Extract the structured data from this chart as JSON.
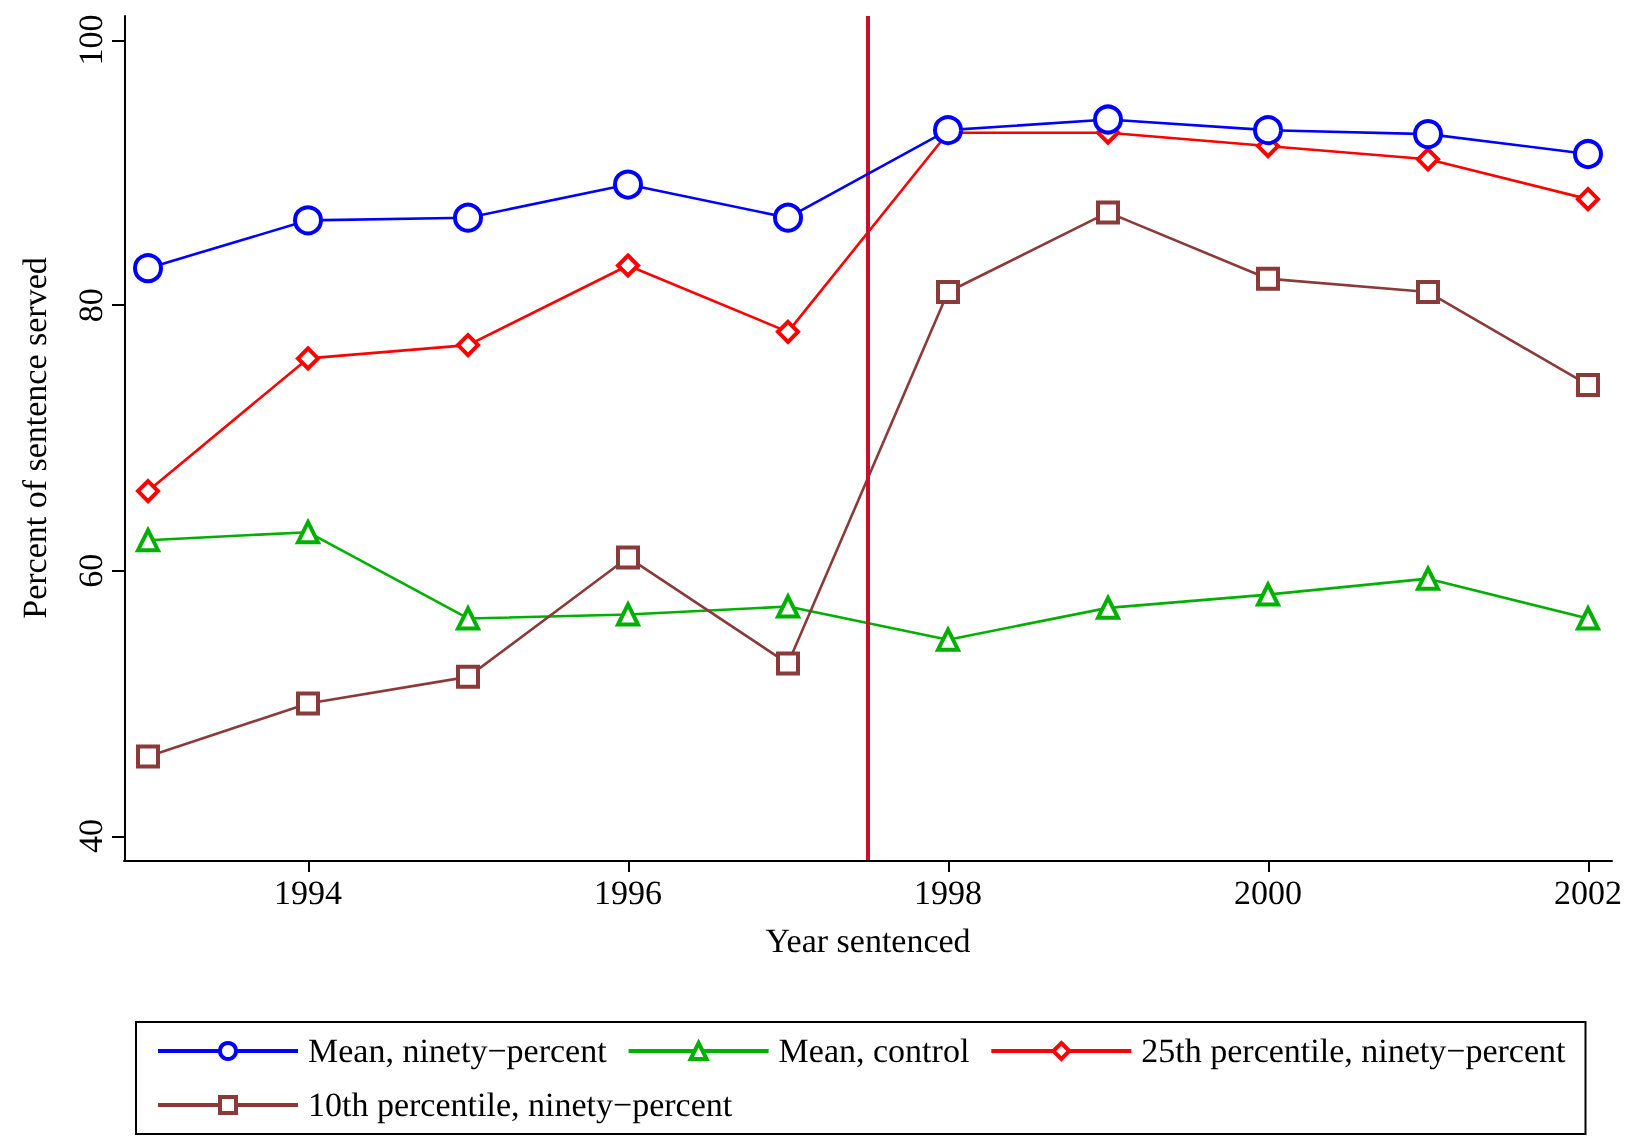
{
  "chart_data": {
    "type": "line",
    "xlabel": "Year sentenced",
    "ylabel": "Percent of sentence served",
    "x": [
      1993,
      1994,
      1995,
      1996,
      1997,
      1998,
      1999,
      2000,
      2001,
      2002
    ],
    "series": [
      {
        "name": "Mean, ninety−percent",
        "color": "#0000ff",
        "marker": "circle",
        "values": [
          82.8,
          86.4,
          86.6,
          89.1,
          86.6,
          93.2,
          94.0,
          93.2,
          92.9,
          91.4
        ]
      },
      {
        "name": "Mean, control",
        "color": "#00b000",
        "marker": "triangle",
        "values": [
          62.3,
          62.9,
          56.4,
          56.7,
          57.3,
          54.8,
          57.2,
          58.2,
          59.4,
          56.4
        ]
      },
      {
        "name": "25th percentile, ninety−percent",
        "color": "#ff0000",
        "marker": "diamond",
        "values": [
          66,
          76,
          77,
          83,
          78,
          93,
          93,
          92,
          91,
          88
        ]
      },
      {
        "name": "10th percentile, ninety−percent",
        "color": "#8b3a3a",
        "marker": "square",
        "values": [
          46,
          50,
          52,
          61,
          53,
          81,
          87,
          82,
          81,
          74
        ]
      }
    ],
    "xlim": [
      1992.85,
      2002.15
    ],
    "xticks": [
      1994,
      1996,
      1998,
      2000,
      2002
    ],
    "ylim": [
      38.2,
      101.8
    ],
    "yticks": [
      40,
      60,
      80,
      100
    ],
    "ref_lines": [
      {
        "axis": "x",
        "value": 1997.5,
        "color": "#c8102e"
      }
    ],
    "grid": false,
    "legend": "bottom"
  }
}
